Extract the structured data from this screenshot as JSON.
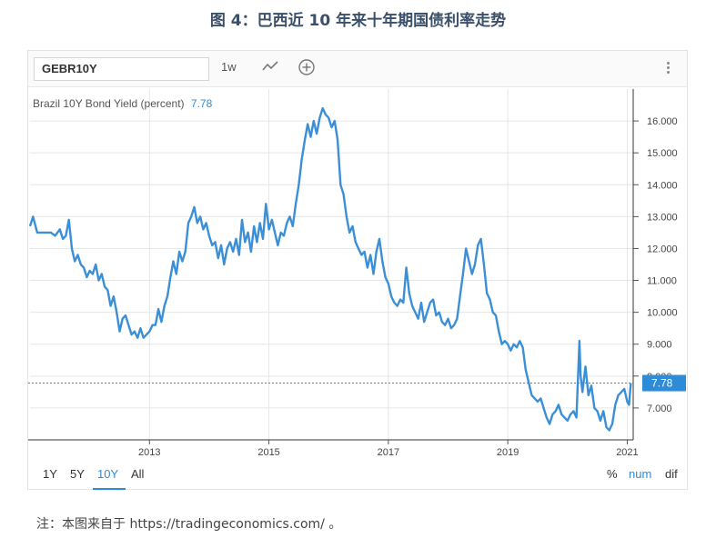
{
  "figure_title": "图 4：巴西近 10 年来十年期国债利率走势",
  "toolbar": {
    "symbol_value": "GEBR10Y",
    "interval_label": "1w",
    "chart_type_icon": "line-chart-icon",
    "add_icon": "plus-circle-icon",
    "menu_icon": "vertical-dots-icon"
  },
  "chart_label": {
    "series_name": "Brazil 10Y Bond Yield (percent)",
    "last_value": "7.78"
  },
  "colors": {
    "line": "#3b8fd6",
    "accent": "#2d8bd7",
    "grid": "#e6e6e6",
    "title": "#3a4f6a"
  },
  "range_buttons": [
    "1Y",
    "5Y",
    "10Y",
    "All"
  ],
  "active_range": "10Y",
  "mode_buttons": [
    "%",
    "num",
    "dif"
  ],
  "active_mode": "num",
  "note": "注：本图来自于 https://tradingeconomics.com/ 。",
  "chart_data": {
    "type": "line",
    "title": "Brazil 10Y Bond Yield (percent)",
    "xlabel": "",
    "ylabel": "",
    "ylim": [
      6.0,
      17.0
    ],
    "xlim": [
      2011.0,
      2021.1
    ],
    "y_ticks": [
      "7.000",
      "8.000",
      "9.000",
      "10.000",
      "11.000",
      "12.000",
      "13.000",
      "14.000",
      "15.000",
      "16.000"
    ],
    "x_ticks": [
      "2013",
      "2015",
      "2017",
      "2019",
      "2021"
    ],
    "last_value_marker": 7.78,
    "grid": true,
    "axis_position": "right",
    "series": [
      {
        "name": "Brazil 10Y Bond Yield (percent)",
        "points": [
          [
            2011.0,
            12.7
          ],
          [
            2011.05,
            13.0
          ],
          [
            2011.12,
            12.5
          ],
          [
            2011.25,
            12.5
          ],
          [
            2011.35,
            12.5
          ],
          [
            2011.42,
            12.4
          ],
          [
            2011.5,
            12.6
          ],
          [
            2011.55,
            12.3
          ],
          [
            2011.6,
            12.4
          ],
          [
            2011.65,
            12.9
          ],
          [
            2011.7,
            12.0
          ],
          [
            2011.75,
            11.6
          ],
          [
            2011.8,
            11.8
          ],
          [
            2011.85,
            11.5
          ],
          [
            2011.9,
            11.4
          ],
          [
            2011.95,
            11.1
          ],
          [
            2012.0,
            11.3
          ],
          [
            2012.05,
            11.2
          ],
          [
            2012.1,
            11.5
          ],
          [
            2012.15,
            11.0
          ],
          [
            2012.2,
            11.2
          ],
          [
            2012.25,
            10.8
          ],
          [
            2012.3,
            10.7
          ],
          [
            2012.35,
            10.2
          ],
          [
            2012.4,
            10.5
          ],
          [
            2012.45,
            10.0
          ],
          [
            2012.5,
            9.4
          ],
          [
            2012.55,
            9.8
          ],
          [
            2012.6,
            9.9
          ],
          [
            2012.65,
            9.6
          ],
          [
            2012.7,
            9.3
          ],
          [
            2012.75,
            9.4
          ],
          [
            2012.8,
            9.2
          ],
          [
            2012.85,
            9.5
          ],
          [
            2012.9,
            9.2
          ],
          [
            2012.95,
            9.3
          ],
          [
            2013.0,
            9.4
          ],
          [
            2013.05,
            9.6
          ],
          [
            2013.1,
            9.6
          ],
          [
            2013.15,
            10.1
          ],
          [
            2013.2,
            9.7
          ],
          [
            2013.25,
            10.2
          ],
          [
            2013.3,
            10.5
          ],
          [
            2013.35,
            11.1
          ],
          [
            2013.4,
            11.6
          ],
          [
            2013.45,
            11.2
          ],
          [
            2013.5,
            11.9
          ],
          [
            2013.55,
            11.6
          ],
          [
            2013.6,
            11.9
          ],
          [
            2013.65,
            12.8
          ],
          [
            2013.7,
            13.0
          ],
          [
            2013.75,
            13.3
          ],
          [
            2013.8,
            12.8
          ],
          [
            2013.85,
            13.0
          ],
          [
            2013.9,
            12.6
          ],
          [
            2013.95,
            12.8
          ],
          [
            2014.0,
            12.4
          ],
          [
            2014.05,
            12.1
          ],
          [
            2014.1,
            12.2
          ],
          [
            2014.15,
            11.7
          ],
          [
            2014.2,
            12.1
          ],
          [
            2014.25,
            11.5
          ],
          [
            2014.3,
            12.0
          ],
          [
            2014.35,
            12.2
          ],
          [
            2014.4,
            11.9
          ],
          [
            2014.45,
            12.3
          ],
          [
            2014.5,
            11.8
          ],
          [
            2014.55,
            12.9
          ],
          [
            2014.6,
            12.2
          ],
          [
            2014.65,
            12.5
          ],
          [
            2014.7,
            11.9
          ],
          [
            2014.75,
            12.7
          ],
          [
            2014.8,
            12.2
          ],
          [
            2014.85,
            12.8
          ],
          [
            2014.9,
            12.3
          ],
          [
            2014.95,
            13.4
          ],
          [
            2015.0,
            12.6
          ],
          [
            2015.05,
            12.9
          ],
          [
            2015.1,
            12.5
          ],
          [
            2015.15,
            12.1
          ],
          [
            2015.2,
            12.5
          ],
          [
            2015.25,
            12.4
          ],
          [
            2015.3,
            12.8
          ],
          [
            2015.35,
            13.0
          ],
          [
            2015.4,
            12.7
          ],
          [
            2015.45,
            13.4
          ],
          [
            2015.5,
            14.0
          ],
          [
            2015.55,
            14.8
          ],
          [
            2015.6,
            15.4
          ],
          [
            2015.65,
            15.9
          ],
          [
            2015.7,
            15.5
          ],
          [
            2015.75,
            16.0
          ],
          [
            2015.8,
            15.6
          ],
          [
            2015.85,
            16.1
          ],
          [
            2015.9,
            16.4
          ],
          [
            2015.95,
            16.2
          ],
          [
            2016.0,
            16.1
          ],
          [
            2016.05,
            15.8
          ],
          [
            2016.1,
            16.0
          ],
          [
            2016.15,
            15.4
          ],
          [
            2016.2,
            14.0
          ],
          [
            2016.25,
            13.7
          ],
          [
            2016.3,
            13.0
          ],
          [
            2016.35,
            12.5
          ],
          [
            2016.4,
            12.7
          ],
          [
            2016.45,
            12.2
          ],
          [
            2016.5,
            12.0
          ],
          [
            2016.55,
            11.8
          ],
          [
            2016.6,
            11.9
          ],
          [
            2016.65,
            11.4
          ],
          [
            2016.7,
            11.8
          ],
          [
            2016.75,
            11.2
          ],
          [
            2016.8,
            11.9
          ],
          [
            2016.85,
            12.3
          ],
          [
            2016.9,
            11.6
          ],
          [
            2016.95,
            11.1
          ],
          [
            2017.0,
            10.9
          ],
          [
            2017.05,
            10.5
          ],
          [
            2017.1,
            10.3
          ],
          [
            2017.15,
            10.2
          ],
          [
            2017.2,
            10.4
          ],
          [
            2017.25,
            10.3
          ],
          [
            2017.3,
            11.4
          ],
          [
            2017.35,
            10.6
          ],
          [
            2017.4,
            10.2
          ],
          [
            2017.45,
            10.0
          ],
          [
            2017.5,
            9.8
          ],
          [
            2017.55,
            10.3
          ],
          [
            2017.6,
            9.7
          ],
          [
            2017.65,
            10.0
          ],
          [
            2017.7,
            10.3
          ],
          [
            2017.75,
            10.4
          ],
          [
            2017.8,
            9.9
          ],
          [
            2017.85,
            10.0
          ],
          [
            2017.9,
            9.7
          ],
          [
            2017.95,
            9.6
          ],
          [
            2018.0,
            9.8
          ],
          [
            2018.05,
            9.5
          ],
          [
            2018.1,
            9.6
          ],
          [
            2018.15,
            9.8
          ],
          [
            2018.2,
            10.5
          ],
          [
            2018.25,
            11.2
          ],
          [
            2018.3,
            12.0
          ],
          [
            2018.35,
            11.6
          ],
          [
            2018.4,
            11.2
          ],
          [
            2018.45,
            11.5
          ],
          [
            2018.5,
            12.1
          ],
          [
            2018.55,
            12.3
          ],
          [
            2018.6,
            11.5
          ],
          [
            2018.65,
            10.6
          ],
          [
            2018.7,
            10.4
          ],
          [
            2018.75,
            10.0
          ],
          [
            2018.8,
            9.9
          ],
          [
            2018.85,
            9.4
          ],
          [
            2018.9,
            9.0
          ],
          [
            2018.95,
            9.1
          ],
          [
            2019.0,
            9.0
          ],
          [
            2019.05,
            8.8
          ],
          [
            2019.1,
            9.0
          ],
          [
            2019.15,
            8.9
          ],
          [
            2019.2,
            9.1
          ],
          [
            2019.25,
            8.9
          ],
          [
            2019.3,
            8.2
          ],
          [
            2019.35,
            7.8
          ],
          [
            2019.4,
            7.4
          ],
          [
            2019.45,
            7.3
          ],
          [
            2019.5,
            7.2
          ],
          [
            2019.55,
            7.3
          ],
          [
            2019.6,
            7.0
          ],
          [
            2019.65,
            6.7
          ],
          [
            2019.7,
            6.5
          ],
          [
            2019.75,
            6.8
          ],
          [
            2019.8,
            6.9
          ],
          [
            2019.85,
            7.1
          ],
          [
            2019.9,
            6.8
          ],
          [
            2019.95,
            6.7
          ],
          [
            2020.0,
            6.6
          ],
          [
            2020.05,
            6.8
          ],
          [
            2020.1,
            6.9
          ],
          [
            2020.15,
            6.7
          ],
          [
            2020.2,
            9.1
          ],
          [
            2020.22,
            8.0
          ],
          [
            2020.25,
            7.5
          ],
          [
            2020.3,
            8.3
          ],
          [
            2020.35,
            7.4
          ],
          [
            2020.4,
            7.7
          ],
          [
            2020.45,
            7.0
          ],
          [
            2020.5,
            6.9
          ],
          [
            2020.55,
            6.6
          ],
          [
            2020.6,
            6.9
          ],
          [
            2020.65,
            6.4
          ],
          [
            2020.7,
            6.3
          ],
          [
            2020.75,
            6.5
          ],
          [
            2020.8,
            7.1
          ],
          [
            2020.85,
            7.4
          ],
          [
            2020.9,
            7.5
          ],
          [
            2020.95,
            7.6
          ],
          [
            2021.0,
            7.2
          ],
          [
            2021.03,
            7.1
          ],
          [
            2021.06,
            7.78
          ]
        ]
      }
    ]
  }
}
